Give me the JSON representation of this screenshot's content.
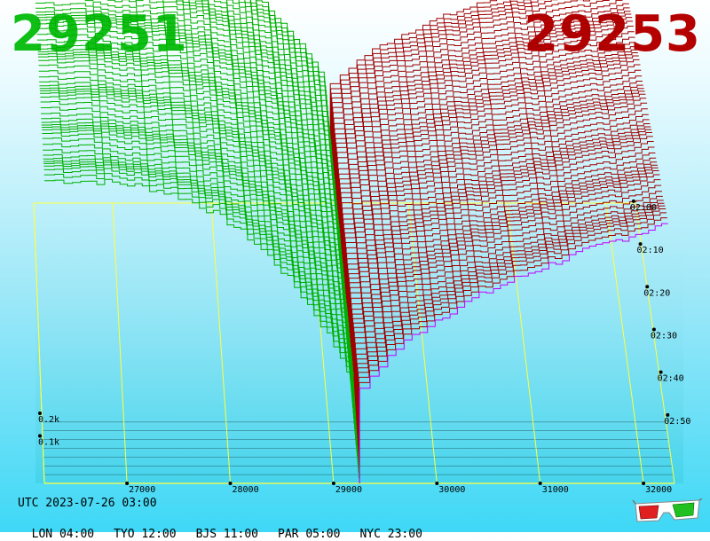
{
  "header": {
    "bid_price": "29251",
    "ask_price": "29253"
  },
  "footer": {
    "utc_time": "UTC 2023-07-26 03:00",
    "zones": [
      {
        "label": "LON 04:00"
      },
      {
        "label": "TYO 12:00"
      },
      {
        "label": "BJS 11:00"
      },
      {
        "label": "PAR 05:00"
      },
      {
        "label": "NYC 23:00"
      }
    ]
  },
  "colors": {
    "bid": "#00b000",
    "ask": "#a00000",
    "grid": "#ffff40",
    "latest_ask": "#c000ff",
    "floor": "#000000"
  },
  "icons": {
    "stereo": "3d-glasses-icon"
  },
  "chart_data": {
    "type": "3d-depth-chart",
    "x_ticks": [
      27000,
      28000,
      29000,
      30000,
      31000,
      32000
    ],
    "x_tick_labels": [
      "27000",
      "28000",
      "29000",
      "30000",
      "31000",
      "32000"
    ],
    "z_ticks": [
      0.1,
      0.2
    ],
    "z_tick_labels": [
      "0.1k",
      "0.2k"
    ],
    "time_labels": [
      "02:00",
      "02:10",
      "02:20",
      "02:30",
      "02:40",
      "02:50"
    ],
    "mid_price": 29252,
    "series": [
      {
        "side": "bid",
        "price_range": [
          26200,
          29252
        ]
      },
      {
        "side": "ask",
        "price_range": [
          29252,
          32300
        ]
      }
    ]
  }
}
